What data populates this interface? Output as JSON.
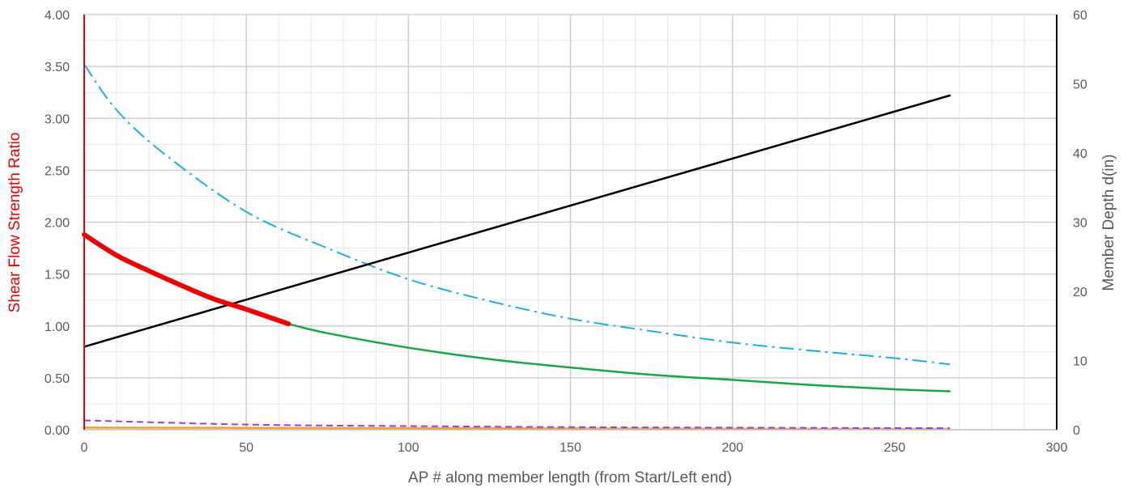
{
  "chart_data": {
    "type": "line",
    "title": "",
    "xlabel": "AP # along member length (from Start/Left end)",
    "ylabel": "Shear Flow Strength Ratio",
    "y2label": "Member Depth d(in)",
    "xlim": [
      0,
      300
    ],
    "ylim": [
      0,
      4
    ],
    "y2lim": [
      0,
      60
    ],
    "x_ticks": [
      "0",
      "50",
      "100",
      "150",
      "200",
      "250",
      "300"
    ],
    "y_ticks": [
      "0.00",
      "0.50",
      "1.00",
      "1.50",
      "2.00",
      "2.50",
      "3.00",
      "3.50",
      "4.00"
    ],
    "y2_ticks": [
      "0",
      "10",
      "20",
      "30",
      "40",
      "50",
      "60"
    ],
    "grid": true,
    "legend": "none",
    "colors": {
      "ratio_red": "#ee0000",
      "ratio_green": "#1aa54a",
      "blue_dashdot": "#1ab0e0",
      "depth_black": "#000000",
      "purple_dashed": "#9a3de8",
      "orange": "#f0a030",
      "grid_major": "#d0d0d0",
      "grid_minor": "#e6e6e6",
      "left_axis": "#ee0000",
      "right_axis": "#000000"
    },
    "series": [
      {
        "axis": "left",
        "style": "solid-thick",
        "color_key": "ratio_red",
        "points": [
          [
            0,
            1.88
          ],
          [
            10,
            1.68
          ],
          [
            20,
            1.53
          ],
          [
            30,
            1.39
          ],
          [
            40,
            1.26
          ],
          [
            50,
            1.16
          ],
          [
            63,
            1.02
          ]
        ]
      },
      {
        "axis": "left",
        "style": "solid",
        "color_key": "ratio_green",
        "points": [
          [
            63,
            1.02
          ],
          [
            75,
            0.93
          ],
          [
            100,
            0.79
          ],
          [
            125,
            0.68
          ],
          [
            150,
            0.6
          ],
          [
            175,
            0.53
          ],
          [
            200,
            0.48
          ],
          [
            225,
            0.43
          ],
          [
            250,
            0.39
          ],
          [
            267,
            0.37
          ]
        ]
      },
      {
        "axis": "left",
        "style": "dash-dot",
        "color_key": "blue_dashdot",
        "points": [
          [
            0,
            3.52
          ],
          [
            10,
            3.08
          ],
          [
            25,
            2.65
          ],
          [
            50,
            2.1
          ],
          [
            75,
            1.75
          ],
          [
            100,
            1.45
          ],
          [
            125,
            1.24
          ],
          [
            150,
            1.07
          ],
          [
            175,
            0.95
          ],
          [
            200,
            0.84
          ],
          [
            225,
            0.76
          ],
          [
            250,
            0.69
          ],
          [
            267,
            0.63
          ]
        ]
      },
      {
        "axis": "right",
        "style": "solid",
        "color_key": "depth_black",
        "points": [
          [
            0,
            12
          ],
          [
            267,
            48.3
          ]
        ]
      },
      {
        "axis": "left",
        "style": "dashed",
        "color_key": "purple_dashed",
        "points": [
          [
            0,
            0.09
          ],
          [
            50,
            0.05
          ],
          [
            100,
            0.035
          ],
          [
            150,
            0.025
          ],
          [
            200,
            0.02
          ],
          [
            267,
            0.015
          ]
        ]
      },
      {
        "axis": "left",
        "style": "solid",
        "color_key": "orange",
        "points": [
          [
            0,
            0.02
          ],
          [
            267,
            0.005
          ]
        ]
      }
    ]
  }
}
